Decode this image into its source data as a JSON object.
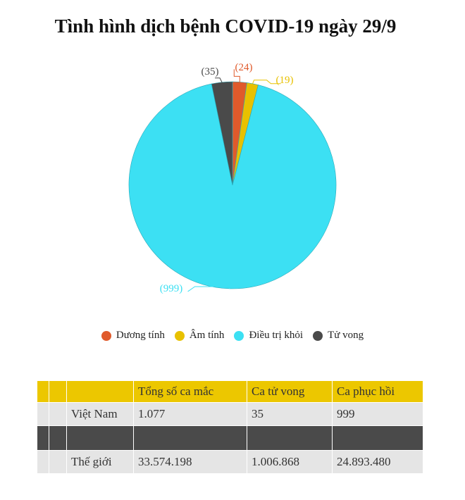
{
  "title": "Tình hình dịch bệnh COVID-19 ngày 29/9",
  "chart_data": {
    "type": "pie",
    "title": "Tình hình dịch bệnh COVID-19 ngày 29/9",
    "categories": [
      "Dương tính",
      "Âm tính",
      "Điều trị khỏi",
      "Tử vong"
    ],
    "values": [
      24,
      19,
      999,
      35
    ],
    "labels": [
      "(24)",
      "(19)",
      "(999)",
      "(35)"
    ],
    "colors": [
      "#e05a2b",
      "#e8c100",
      "#3ce0f3",
      "#4a4a4a"
    ],
    "legend_position": "bottom"
  },
  "legend": [
    {
      "label": "Dương tính",
      "color": "#e05a2b"
    },
    {
      "label": "Âm tính",
      "color": "#e8c100"
    },
    {
      "label": "Điều trị khỏi",
      "color": "#3ce0f3"
    },
    {
      "label": "Tử vong",
      "color": "#4a4a4a"
    }
  ],
  "table": {
    "headers": [
      "",
      "",
      "",
      "Tổng số ca mắc",
      "Ca tử vong",
      "Ca phục hồi"
    ],
    "rows": [
      {
        "region": "Việt Nam",
        "total": "1.077",
        "deaths": "35",
        "recovered": "999"
      },
      {
        "region": "Thế giới",
        "total": "33.574.198",
        "deaths": "1.006.868",
        "recovered": "24.893.480"
      }
    ]
  }
}
